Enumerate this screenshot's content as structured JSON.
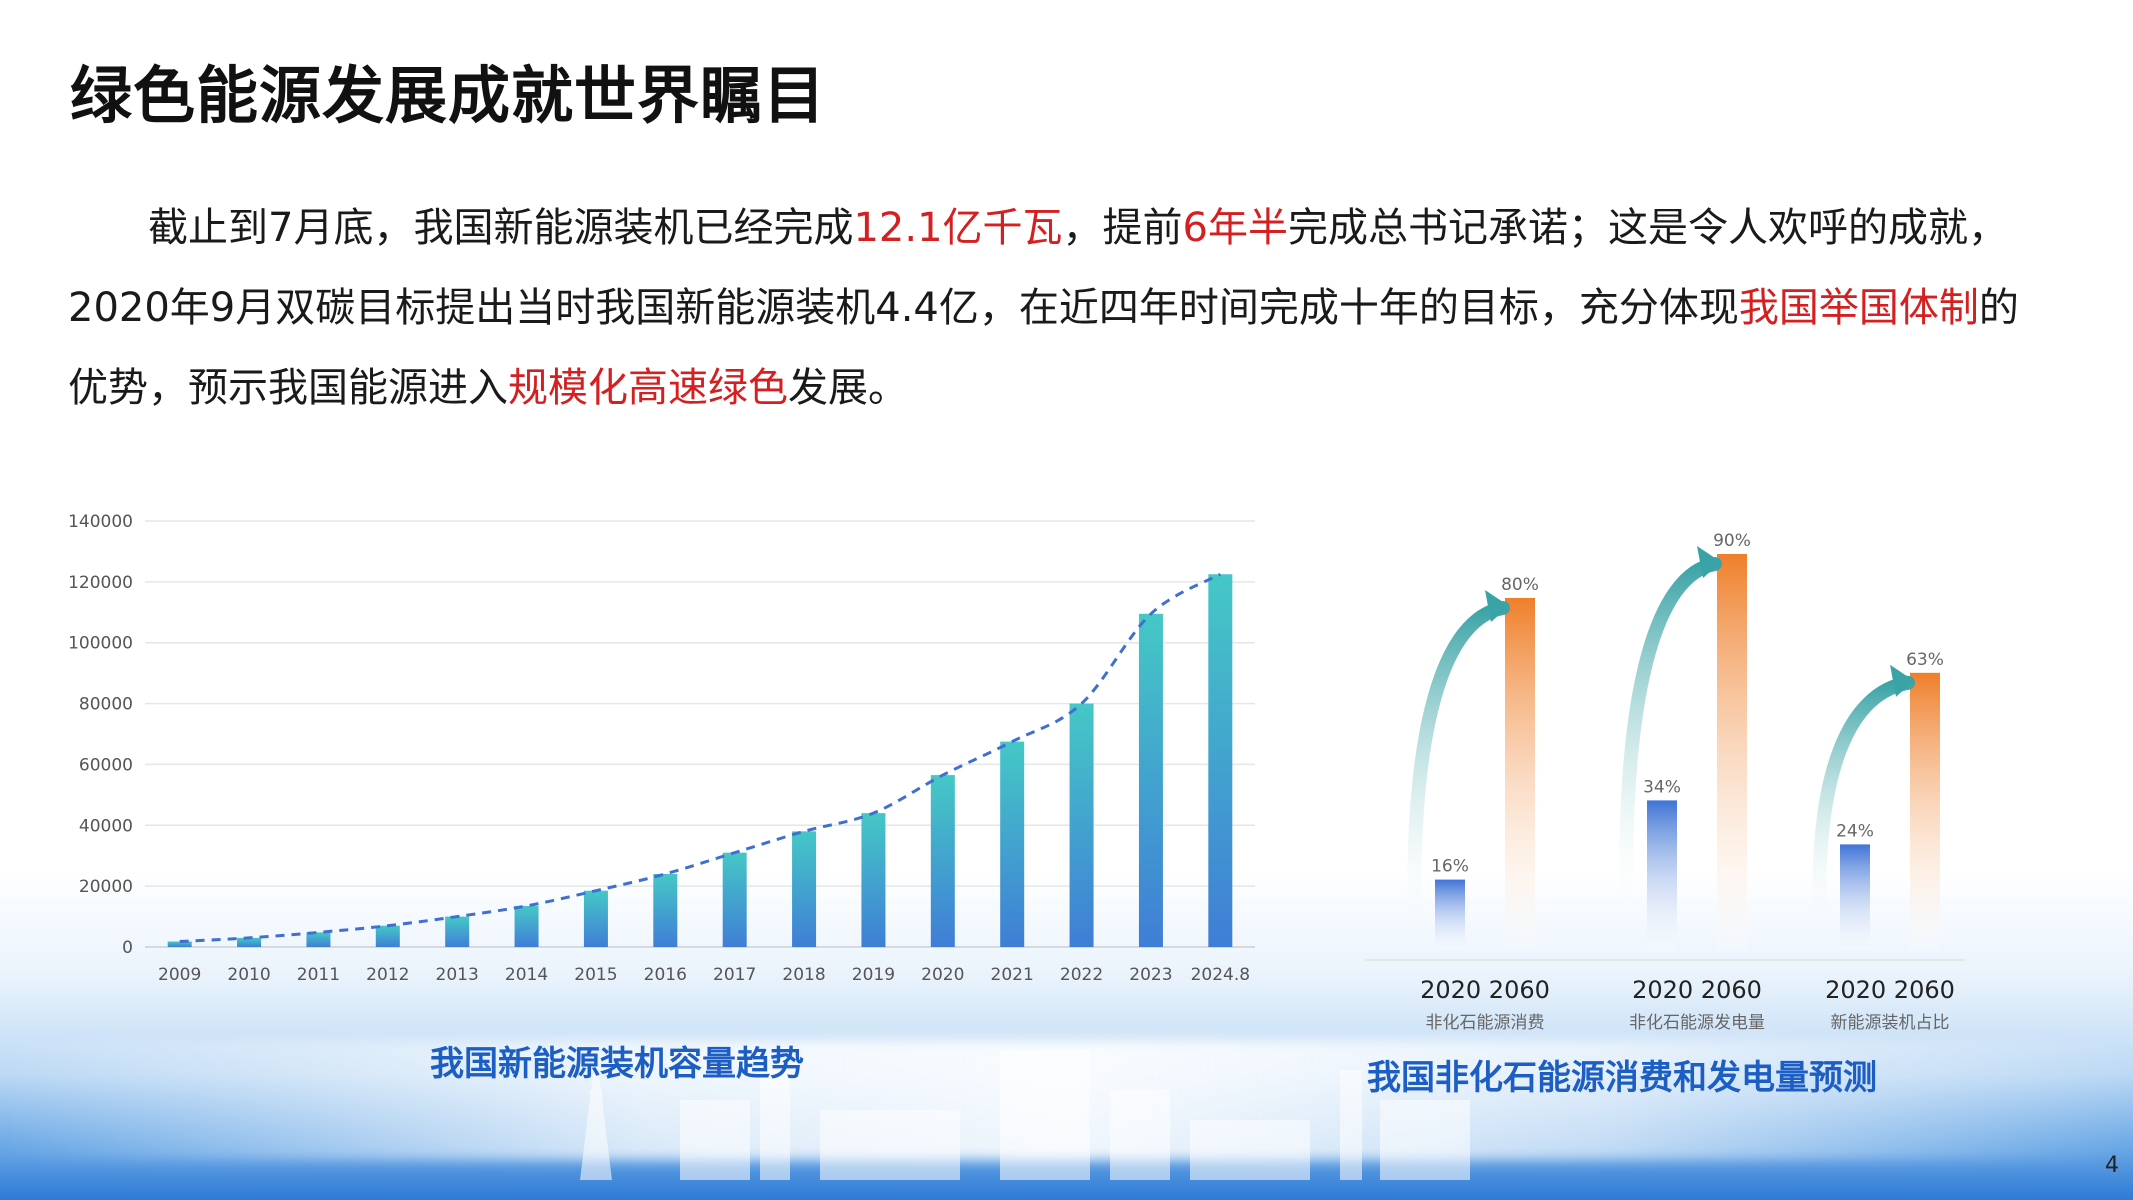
{
  "title": "绿色能源发展成就世界瞩目",
  "paragraph": [
    {
      "text": "截止到7月底，我国新能源装机已经完成",
      "highlight": false
    },
    {
      "text": "12.1亿千瓦",
      "highlight": true
    },
    {
      "text": "，提前",
      "highlight": false
    },
    {
      "text": "6年半",
      "highlight": true
    },
    {
      "text": "完成总书记承诺；这是令人欢呼的成就，2020年9月双碳目标提出当时我国新能源装机4.4亿，在近四年时间完成十年的目标，充分体现",
      "highlight": false
    },
    {
      "text": "我国举国体制",
      "highlight": true
    },
    {
      "text": "的优势，预示我国能源进入",
      "highlight": false
    },
    {
      "text": "规模化高速绿色",
      "highlight": true
    },
    {
      "text": "发展。",
      "highlight": false
    }
  ],
  "colors": {
    "highlight": "#d42020",
    "caption": "#1d5ec4",
    "bar_top": "#45c8c6",
    "bar_bottom": "#3f7ed6",
    "trend": "#3f6fd0",
    "bar_2020": "#3f74d6",
    "bar_2060": "#ef7f2a",
    "arrow": "#3aa3a6"
  },
  "chart_data": [
    {
      "type": "bar",
      "caption": "我国新能源装机容量趋势",
      "categories": [
        "2009",
        "2010",
        "2011",
        "2012",
        "2013",
        "2014",
        "2015",
        "2016",
        "2017",
        "2018",
        "2019",
        "2020",
        "2021",
        "2022",
        "2023",
        "2024.8"
      ],
      "values": [
        1800,
        3000,
        4800,
        7000,
        10000,
        13500,
        18500,
        24000,
        31000,
        38000,
        44000,
        56500,
        67500,
        80000,
        109500,
        122500
      ],
      "ylim": [
        0,
        140000
      ],
      "yticks": [
        "0",
        "20000",
        "40000",
        "60000",
        "80000",
        "100000",
        "120000",
        "140000"
      ],
      "grid": true,
      "trendline": "dashed",
      "legend": "none"
    },
    {
      "type": "bar",
      "caption": "我国非化石能源消费和发电量预测",
      "groups": [
        {
          "years": "2020 2060",
          "label": "非化石能源消费",
          "values": [
            16,
            80
          ],
          "labels": [
            "16%",
            "80%"
          ]
        },
        {
          "years": "2020 2060",
          "label": "非化石能源发电量",
          "values": [
            34,
            90
          ],
          "labels": [
            "34%",
            "90%"
          ]
        },
        {
          "years": "2020 2060",
          "label": "新能源装机占比",
          "values": [
            24,
            63
          ],
          "labels": [
            "24%",
            "63%"
          ]
        }
      ],
      "ylim": [
        0,
        100
      ],
      "legend": "none"
    }
  ],
  "page_number": "4"
}
